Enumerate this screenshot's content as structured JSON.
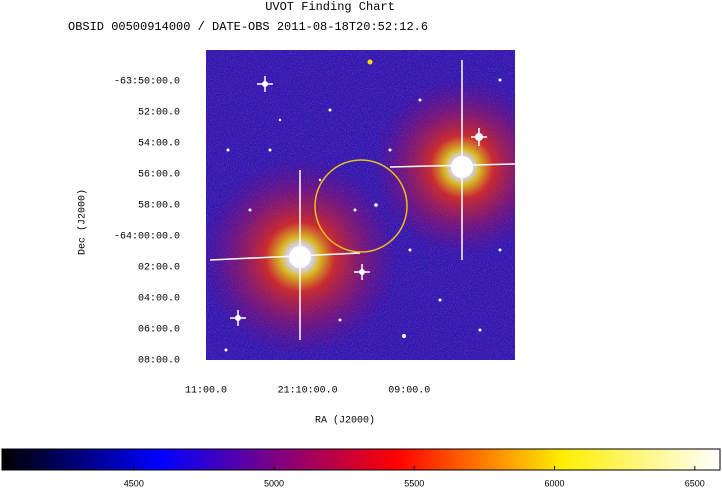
{
  "chart_data": {
    "type": "image",
    "title": "UVOT Finding Chart",
    "subtitle": "OBSID 00500914000 / DATE-OBS 2011-08-18T20:52:12.6",
    "x_label": "RA (J2000)",
    "y_label": "Dec (J2000)",
    "xlim": [
      317.75,
      316.99
    ],
    "xticks": [
      {
        "value": 317.75,
        "label": "11:00.0"
      },
      {
        "value": 317.5,
        "label": "21:10:00.0"
      },
      {
        "value": 317.25,
        "label": "09:00.0"
      }
    ],
    "ylim": [
      -63.8,
      -64.1333
    ],
    "yticks": [
      {
        "value": -63.8333,
        "label": "-63:50:00.0"
      },
      {
        "value": -63.8667,
        "label": "52:00.0"
      },
      {
        "value": -63.9,
        "label": "54:00.0"
      },
      {
        "value": -63.9333,
        "label": "56:00.0"
      },
      {
        "value": -63.9667,
        "label": "58:00.0"
      },
      {
        "value": -64.0,
        "label": "-64:00:00.0"
      },
      {
        "value": -64.0333,
        "label": "02:00.0"
      },
      {
        "value": -64.0667,
        "label": "04:00.0"
      },
      {
        "value": -64.1,
        "label": "06:00.0"
      },
      {
        "value": -64.1333,
        "label": "08:00.0"
      }
    ],
    "colorbar": {
      "lim": [
        4030,
        6590
      ],
      "ticks": [
        4500,
        5000,
        5500,
        6000,
        6500
      ]
    }
  }
}
